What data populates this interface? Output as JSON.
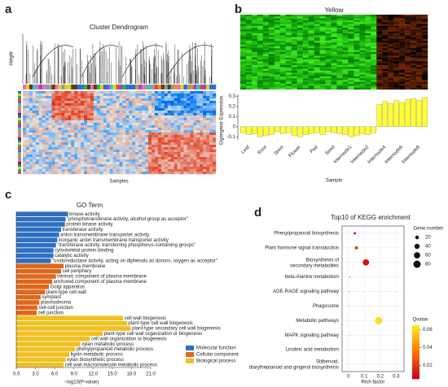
{
  "chart_data": [
    {
      "type": "dendrogram-heatmap",
      "label": "a",
      "title": "Cluster Dendrogram",
      "ylabel": "Height",
      "xlabel": "Samples"
    },
    {
      "type": "bar",
      "label": "b",
      "title": "Yellow",
      "color": "#ffff33",
      "categories": [
        null,
        "Leaf",
        null,
        null,
        "Root",
        null,
        null,
        "Stem",
        null,
        null,
        "Flower",
        null,
        null,
        "Pod",
        null,
        null,
        "Seed",
        null,
        null,
        "Internode1",
        null,
        null,
        "Internode2",
        null,
        null,
        "Internode4",
        null,
        null,
        "Internode6",
        null,
        null,
        "Internode8",
        null
      ],
      "values": [
        -0.06,
        -0.08,
        -0.07,
        -0.1,
        -0.09,
        -0.08,
        -0.05,
        -0.07,
        -0.06,
        -0.09,
        -0.1,
        -0.08,
        -0.07,
        -0.06,
        -0.08,
        -0.05,
        -0.06,
        -0.07,
        -0.08,
        -0.1,
        -0.09,
        -0.07,
        -0.08,
        -0.06,
        0.22,
        0.25,
        0.23,
        0.26,
        0.24,
        0.27,
        0.28,
        0.26,
        0.29
      ],
      "ylim": [
        -0.13,
        0.32
      ],
      "yticks": [
        -0.1,
        0,
        0.1,
        0.2,
        0.3
      ],
      "ylabel": "Eigengene Expression",
      "xlabel": "Sample"
    },
    {
      "type": "hbar",
      "label": "c",
      "title": "GO Term",
      "xlabel": "−log10(P-value)",
      "xlim": [
        0,
        21
      ],
      "xticks": [
        {
          "value": 0,
          "label": "0.0"
        },
        {
          "value": 3,
          "label": "3.0"
        },
        {
          "value": 6,
          "label": "6.0"
        },
        {
          "value": 9,
          "label": "9.0"
        },
        {
          "value": 12,
          "label": "12.0"
        },
        {
          "value": 15,
          "label": "15.0"
        },
        {
          "value": 18,
          "label": "18.0"
        },
        {
          "value": 21,
          "label": "21.0"
        }
      ],
      "series": [
        {
          "name": "Molecular function",
          "color": "#2f6fc0",
          "categories": [
            "kinase activity",
            "\"phosphotransferase activity, alcohol group as acceptor\"",
            "protein kinase activity",
            "transferase activity",
            "anion transmembrane transporter activity",
            "inorganic anion transmembrane transporter activity",
            "\"transferase activity, transferring phosphorus-containing groups\"",
            "cytoskeletal protein binding",
            "catalytic activity",
            "\"oxidoreductase activity, acting on diphenols as donors, oxygen as acceptor\""
          ],
          "values": [
            8.1,
            7.7,
            7.6,
            7.0,
            6.7,
            6.4,
            6.2,
            5.8,
            5.8,
            5.4
          ]
        },
        {
          "name": "Cellular component",
          "color": "#e0661c",
          "categories": [
            "plasma membrane",
            "cell periphery",
            "intrinsic component of plasma membrane",
            "anchored component of plasma membrane",
            "Golgi apparatus",
            "plant-type cell wall",
            "symplast",
            "plasmodesma",
            "cell-cell junction",
            "cell junction"
          ],
          "values": [
            7.4,
            7.0,
            6.2,
            5.6,
            5.1,
            4.5,
            3.8,
            3.6,
            3.3,
            3.2
          ]
        },
        {
          "name": "Biological process",
          "color": "#f0c020",
          "categories": [
            "cell wall biogenesis",
            "plant-type cell wall biogenesis",
            "plant-type secondary cell wall biogenesis",
            "plant-type cell wall organization or biogenesis",
            "cell wall organization or biogenesis",
            "xylan metabolic process",
            "phenylpropanoid metabolic process",
            "lignin metabolic process",
            "xylan biosynthetic process",
            "cell wall macromolecule metabolic process"
          ],
          "values": [
            16.7,
            17.3,
            17.9,
            13.5,
            11.5,
            10.0,
            9.2,
            8.3,
            7.7,
            7.4
          ]
        }
      ]
    },
    {
      "type": "scatter",
      "label": "d",
      "title": "Top10 of KEGG enrichment",
      "xlabel": "Rich factor",
      "categories": [
        "Phenylpropanoid biosynthesis",
        "Plant hormone signal transduction",
        "Biosynthesis of secondary metabolites",
        "beta-Alanine metabolism",
        "AGE-RAGE signaling pathway",
        "Phagosome",
        "Metabolic pathways",
        "MAPK signaling pathway",
        "Linoleic acid metabolism",
        "Stilbenoid, diarylheptanoid and gingerol biosynthesis"
      ],
      "x": [
        0.04,
        0.05,
        0.11,
        0.01,
        0.005,
        0.005,
        0.19,
        0.01,
        0.003,
        0.003
      ],
      "size": [
        10,
        15,
        60,
        3,
        3,
        3,
        80,
        3,
        1,
        1
      ],
      "qvalue": [
        0.015,
        0.02,
        0.01,
        0.03,
        0.055,
        0.055,
        0.06,
        0.06,
        0.062,
        0.062
      ],
      "xlim": [
        -0.04,
        0.35
      ],
      "xticks": [
        0,
        0.1,
        0.2,
        0.3
      ],
      "size_legend": {
        "title": "Gene number",
        "values": [
          20,
          40,
          60,
          80
        ]
      },
      "color_legend": {
        "title": "Qvalue",
        "lim": [
          0.005,
          0.065
        ],
        "ticks": [
          0.02,
          0.04,
          0.06
        ]
      }
    }
  ]
}
